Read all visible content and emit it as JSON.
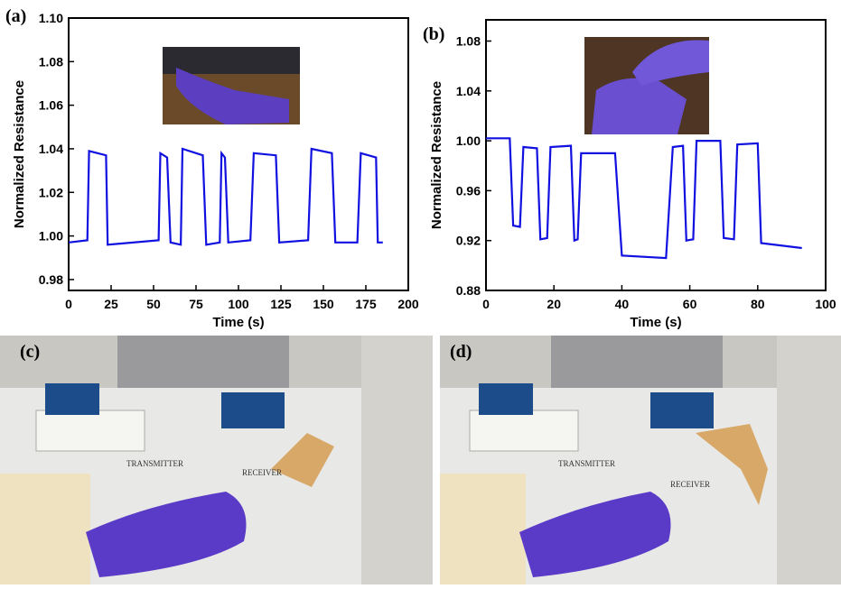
{
  "chart_data": [
    {
      "type": "line",
      "panel": "(a)",
      "x_label": "Time (s)",
      "y_label": "Normalized Resistance",
      "x": [
        0,
        11,
        12,
        22,
        23,
        53,
        54,
        58,
        60,
        66,
        67,
        79,
        81,
        89,
        90,
        92,
        94,
        107,
        109,
        122,
        124,
        141,
        143,
        155,
        157,
        170,
        172,
        181,
        182,
        185
      ],
      "series": [
        {
          "color": "#1010e0",
          "values": [
            0.997,
            0.998,
            1.039,
            1.037,
            0.996,
            0.998,
            1.038,
            1.036,
            0.997,
            0.996,
            1.04,
            1.037,
            0.996,
            0.997,
            1.038,
            1.036,
            0.997,
            0.998,
            1.038,
            1.037,
            0.997,
            0.998,
            1.04,
            1.038,
            0.997,
            0.997,
            1.038,
            1.036,
            0.997,
            0.997
          ]
        }
      ],
      "xlim": [
        0,
        200
      ],
      "xticks": [
        0,
        25,
        50,
        75,
        100,
        125,
        150,
        175,
        200
      ],
      "ylim": [
        0.975,
        1.1
      ],
      "yticks": [
        0.98,
        {
          "value": 1,
          "label": "1.00"
        },
        1.02,
        1.04,
        1.06,
        1.08,
        {
          "value": 1.1,
          "label": "1.10"
        }
      ]
    },
    {
      "type": "line",
      "panel": "(b)",
      "x_label": "Time (s)",
      "y_label": "Normalized Resistance",
      "x": [
        0,
        7,
        8,
        10,
        11,
        15,
        16,
        18,
        19,
        25,
        26,
        27,
        28,
        38,
        40,
        53,
        55,
        58,
        59,
        61,
        62,
        69,
        70,
        73,
        74,
        80,
        81,
        93
      ],
      "series": [
        {
          "color": "#1010e0",
          "values": [
            1.002,
            1.002,
            0.932,
            0.931,
            0.995,
            0.994,
            0.921,
            0.922,
            0.995,
            0.996,
            0.92,
            0.921,
            0.99,
            0.99,
            0.908,
            0.906,
            0.995,
            0.996,
            0.92,
            0.921,
            1,
            1,
            0.922,
            0.921,
            0.997,
            0.998,
            0.918,
            0.914
          ]
        }
      ],
      "xlim": [
        0,
        100
      ],
      "xticks": [
        0,
        20,
        40,
        60,
        80,
        100
      ],
      "ylim": [
        0.88,
        1.097
      ],
      "yticks": [
        0.88,
        0.92,
        0.96,
        {
          "value": 1,
          "label": "1.00"
        },
        1.04,
        1.08
      ]
    }
  ],
  "photos": [
    {
      "panel": "(c)",
      "texts": [
        "TRANSMITTER",
        "RECEIVER"
      ]
    },
    {
      "panel": "(d)",
      "texts": [
        "TRANSMITTER",
        "RECEIVER"
      ]
    }
  ]
}
